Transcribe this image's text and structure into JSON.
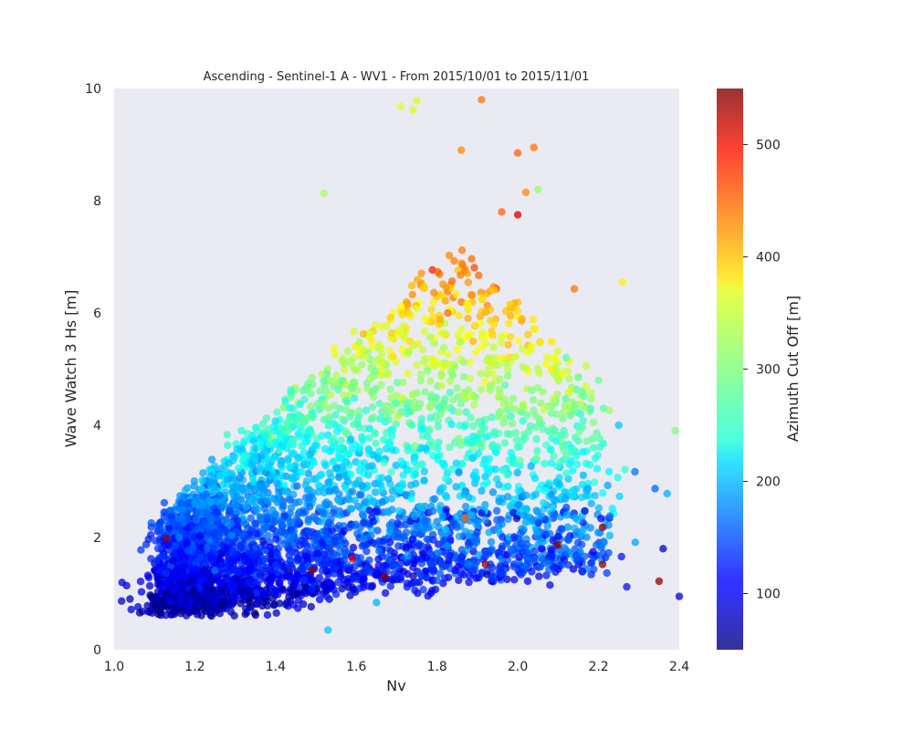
{
  "chart_data": {
    "type": "scatter",
    "title": "Ascending - Sentinel-1 A - WV1 - From 2015/10/01 to 2015/11/01",
    "xlabel": "Nv",
    "ylabel": "Wave Watch 3 Hs [m]",
    "xlim": [
      1.0,
      2.4
    ],
    "ylim": [
      0,
      10
    ],
    "xticks": [
      "1.0",
      "1.2",
      "1.4",
      "1.6",
      "1.8",
      "2.0",
      "2.2",
      "2.4"
    ],
    "yticks": [
      "0",
      "2",
      "4",
      "6",
      "8",
      "10"
    ],
    "grid": false,
    "colorbar": {
      "label": "Azimuth Cut Off [m]",
      "range": [
        50,
        550
      ],
      "ticks": [
        "100",
        "200",
        "300",
        "400",
        "500"
      ],
      "colormap": "jet"
    },
    "point_count": 4000,
    "marker_alpha": 0.75,
    "background_color": "#eaeaf2",
    "outliers": [
      {
        "x": 1.75,
        "y": 9.78,
        "c": 345
      },
      {
        "x": 1.74,
        "y": 9.62,
        "c": 345
      },
      {
        "x": 1.71,
        "y": 9.68,
        "c": 350
      },
      {
        "x": 1.91,
        "y": 9.8,
        "c": 430
      },
      {
        "x": 2.04,
        "y": 8.95,
        "c": 430
      },
      {
        "x": 2.0,
        "y": 8.85,
        "c": 440
      },
      {
        "x": 1.86,
        "y": 8.9,
        "c": 420
      },
      {
        "x": 1.52,
        "y": 8.13,
        "c": 320
      },
      {
        "x": 2.0,
        "y": 7.75,
        "c": 510
      },
      {
        "x": 1.96,
        "y": 7.8,
        "c": 440
      },
      {
        "x": 2.02,
        "y": 8.15,
        "c": 420
      },
      {
        "x": 2.05,
        "y": 8.2,
        "c": 310
      },
      {
        "x": 2.14,
        "y": 6.43,
        "c": 430
      },
      {
        "x": 2.26,
        "y": 6.55,
        "c": 370
      },
      {
        "x": 2.39,
        "y": 3.9,
        "c": 300
      },
      {
        "x": 2.25,
        "y": 4.0,
        "c": 210
      },
      {
        "x": 1.13,
        "y": 1.98,
        "c": 540
      },
      {
        "x": 1.59,
        "y": 1.62,
        "c": 500
      },
      {
        "x": 1.87,
        "y": 2.35,
        "c": 440
      },
      {
        "x": 2.21,
        "y": 2.18,
        "c": 540
      },
      {
        "x": 2.35,
        "y": 1.22,
        "c": 540
      },
      {
        "x": 2.21,
        "y": 1.52,
        "c": 540
      },
      {
        "x": 2.1,
        "y": 1.87,
        "c": 540
      },
      {
        "x": 1.92,
        "y": 1.52,
        "c": 540
      },
      {
        "x": 1.67,
        "y": 1.3,
        "c": 540
      },
      {
        "x": 1.49,
        "y": 1.42,
        "c": 540
      },
      {
        "x": 1.38,
        "y": 0.62,
        "c": 90
      },
      {
        "x": 1.53,
        "y": 0.35,
        "c": 210
      },
      {
        "x": 1.65,
        "y": 0.84,
        "c": 200
      },
      {
        "x": 2.4,
        "y": 0.95,
        "c": 90
      },
      {
        "x": 2.36,
        "y": 1.8,
        "c": 90
      },
      {
        "x": 2.37,
        "y": 2.78,
        "c": 200
      },
      {
        "x": 2.27,
        "y": 1.12,
        "c": 120
      },
      {
        "x": 2.34,
        "y": 2.87,
        "c": 160
      },
      {
        "x": 2.29,
        "y": 3.17,
        "c": 170
      },
      {
        "x": 2.12,
        "y": 5.2,
        "c": 280
      },
      {
        "x": 2.2,
        "y": 4.8,
        "c": 290
      },
      {
        "x": 2.18,
        "y": 4.3,
        "c": 270
      }
    ]
  }
}
